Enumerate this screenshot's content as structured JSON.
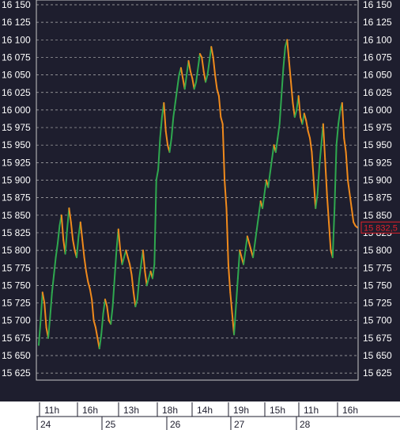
{
  "colors": {
    "background": "#1e1e2e",
    "plot_border": "#c8c8c8",
    "grid": "#b4b4b4",
    "text": "#ffffff",
    "up": "#2fa84f",
    "down": "#f08a1c",
    "price_tag_bg": "#1e1e2e",
    "price_tag_border": "#e0202a",
    "price_tag_text": "#e0202a",
    "footer_bg": "#ffffff",
    "footer_text": "#1e1e2e"
  },
  "chart_data": {
    "type": "line",
    "title": "",
    "xlabel": "",
    "ylabel": "",
    "ylim": [
      15612,
      16154
    ],
    "grid": true,
    "y_ticks": [
      16150,
      16125,
      16100,
      16075,
      16050,
      16025,
      16000,
      15975,
      15950,
      15925,
      15900,
      15875,
      15850,
      15825,
      15800,
      15775,
      15750,
      15725,
      15700,
      15675,
      15650,
      15625
    ],
    "y_tick_labels": [
      "16 150",
      "16 125",
      "16 100",
      "16 075",
      "16 050",
      "16 025",
      "16 000",
      "15 975",
      "15 950",
      "15 925",
      "15 900",
      "15 875",
      "15 850",
      "15 825",
      "15 800",
      "15 775",
      "15 750",
      "15 725",
      "15 700",
      "15 675",
      "15 650",
      "15 625"
    ],
    "time_labels": [
      "11h",
      "16h",
      "13h",
      "18h",
      "14h",
      "19h",
      "15h",
      "11h",
      "16h"
    ],
    "day_labels": [
      "24",
      "25",
      "26",
      "27",
      "28"
    ],
    "last_price": 15832.5,
    "last_price_label": "15 832,5",
    "series": [
      {
        "values": [
          15665,
          15700,
          15740,
          15725,
          15690,
          15675,
          15705,
          15740,
          15765,
          15790,
          15810,
          15835,
          15850,
          15815,
          15795,
          15830,
          15860,
          15840,
          15815,
          15800,
          15790,
          15820,
          15840,
          15815,
          15790,
          15770,
          15755,
          15745,
          15730,
          15700,
          15690,
          15675,
          15660,
          15680,
          15710,
          15730,
          15720,
          15700,
          15695,
          15720,
          15760,
          15800,
          15830,
          15800,
          15780,
          15790,
          15800,
          15790,
          15780,
          15765,
          15740,
          15720,
          15730,
          15760,
          15780,
          15800,
          15770,
          15750,
          15760,
          15770,
          15760,
          15780,
          15900,
          15915,
          15960,
          15990,
          16010,
          15970,
          15950,
          15940,
          15960,
          15990,
          16010,
          16030,
          16050,
          16060,
          16045,
          16030,
          16050,
          16070,
          16055,
          16045,
          16030,
          16040,
          16060,
          16080,
          16075,
          16055,
          16040,
          16050,
          16070,
          16090,
          16075,
          16050,
          16030,
          16020,
          15990,
          15980,
          15900,
          15860,
          15780,
          15740,
          15710,
          15680,
          15720,
          15760,
          15800,
          15790,
          15780,
          15800,
          15820,
          15810,
          15800,
          15790,
          15810,
          15830,
          15850,
          15870,
          15860,
          15880,
          15900,
          15890,
          15910,
          15930,
          15950,
          15940,
          15960,
          15980,
          16020,
          16060,
          16090,
          16100,
          16070,
          16040,
          16010,
          15990,
          16000,
          16020,
          15990,
          15980,
          15995,
          15985,
          15970,
          15960,
          15940,
          15900,
          15860,
          15880,
          15920,
          15950,
          15980,
          15930,
          15880,
          15840,
          15800,
          15790,
          15860,
          15950,
          15980,
          16000,
          16010,
          15960,
          15940,
          15900,
          15880,
          15860,
          15840,
          15835,
          15832.5
        ]
      }
    ]
  }
}
